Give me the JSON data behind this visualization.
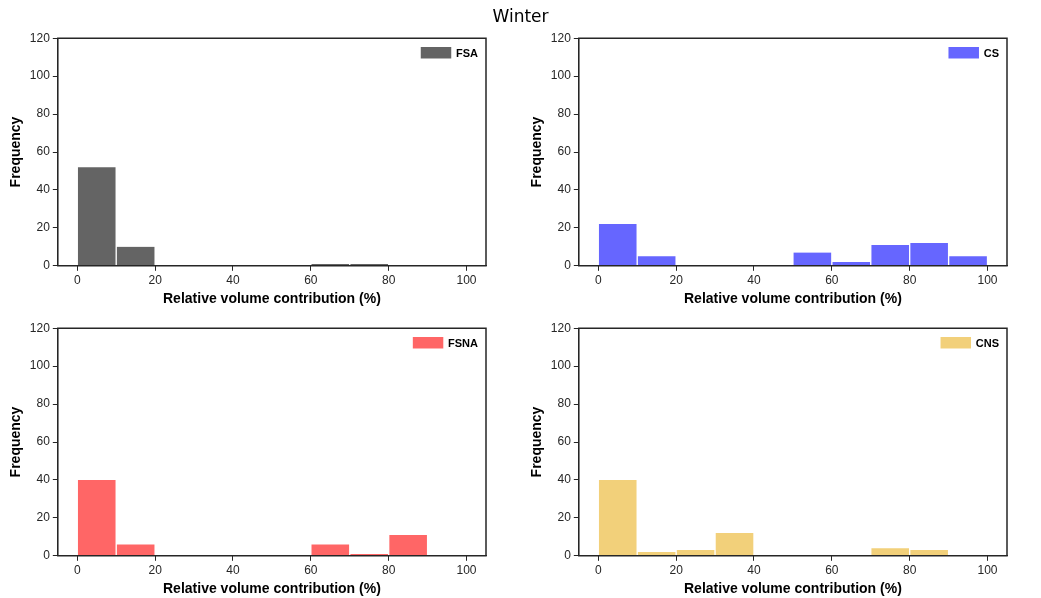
{
  "chart_data": [
    {
      "type": "histogram",
      "title": "Winter",
      "xlabel": "Relative volume contribution (%)",
      "ylabel": "Frequency",
      "bins": [
        0,
        10,
        20,
        30,
        40,
        50,
        60,
        70,
        80,
        90,
        100
      ],
      "series": [
        {
          "name": "FSA",
          "color": "#646464",
          "values": [
            52,
            10,
            0,
            0,
            0,
            0,
            1,
            1,
            0,
            0
          ]
        }
      ],
      "xlim": [
        -5,
        105
      ],
      "xticks": [
        0,
        20,
        40,
        60,
        80,
        100
      ],
      "ylim": [
        0,
        120
      ],
      "yticks": [
        0,
        20,
        40,
        60,
        80,
        100,
        120
      ],
      "legend": "top right",
      "grid": false
    },
    {
      "type": "histogram",
      "xlabel": "Relative volume contribution (%)",
      "ylabel": "Frequency",
      "bins": [
        0,
        10,
        20,
        30,
        40,
        50,
        60,
        70,
        80,
        90,
        100
      ],
      "series": [
        {
          "name": "CS",
          "color": "#6666ff",
          "values": [
            22,
            5,
            0,
            0,
            0,
            7,
            2,
            11,
            12,
            5
          ]
        }
      ],
      "xlim": [
        -5,
        105
      ],
      "xticks": [
        0,
        20,
        40,
        60,
        80,
        100
      ],
      "ylim": [
        0,
        120
      ],
      "yticks": [
        0,
        20,
        40,
        60,
        80,
        100,
        120
      ],
      "legend": "top right",
      "grid": false
    },
    {
      "type": "histogram",
      "xlabel": "Relative volume contribution (%)",
      "ylabel": "Frequency",
      "bins": [
        0,
        10,
        20,
        30,
        40,
        50,
        60,
        70,
        80,
        90,
        100
      ],
      "series": [
        {
          "name": "FSNA",
          "color": "#ff6666",
          "values": [
            40,
            6,
            0,
            0,
            0,
            0,
            6,
            1,
            11,
            0
          ]
        }
      ],
      "xlim": [
        -5,
        105
      ],
      "xticks": [
        0,
        20,
        40,
        60,
        80,
        100
      ],
      "ylim": [
        0,
        120
      ],
      "yticks": [
        0,
        20,
        40,
        60,
        80,
        100,
        120
      ],
      "legend": "top right",
      "grid": false
    },
    {
      "type": "histogram",
      "xlabel": "Relative volume contribution (%)",
      "ylabel": "Frequency",
      "bins": [
        0,
        10,
        20,
        30,
        40,
        50,
        60,
        70,
        80,
        90,
        100
      ],
      "series": [
        {
          "name": "CNS",
          "color": "#f2d07a",
          "values": [
            40,
            2,
            3,
            12,
            0,
            0,
            0,
            4,
            3,
            0
          ]
        }
      ],
      "xlim": [
        -5,
        105
      ],
      "xticks": [
        0,
        20,
        40,
        60,
        80,
        100
      ],
      "ylim": [
        0,
        120
      ],
      "yticks": [
        0,
        20,
        40,
        60,
        80,
        100,
        120
      ],
      "legend": "top right",
      "grid": false
    }
  ]
}
